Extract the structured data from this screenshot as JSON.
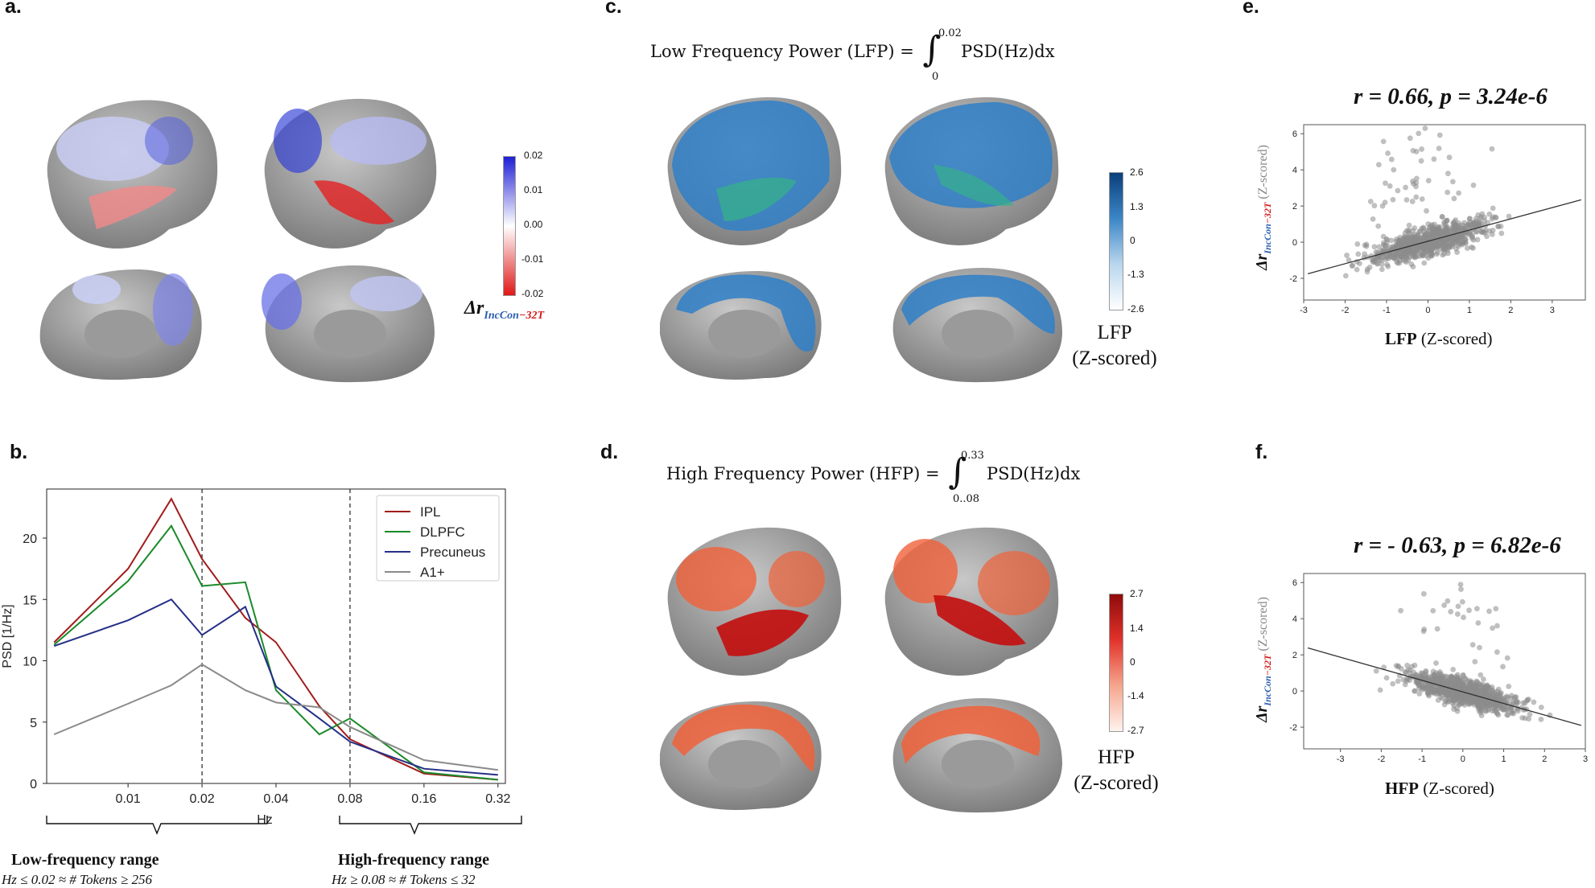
{
  "panels": {
    "a": {
      "letter": "a.",
      "colorbar_ticks": [
        "0.02",
        "0.01",
        "0.00",
        "-0.01",
        "-0.02"
      ],
      "label_delta": "Δr",
      "label_sub_a": "IncCon",
      "label_sub_b": "−32T",
      "colors": {
        "high": "#1f1fd6",
        "low": "#e01818"
      }
    },
    "b": {
      "letter": "b.",
      "xlabel": "Hz",
      "ylabel": "PSD [1/Hz]",
      "low_range": {
        "title": "Low-frequency range",
        "desc": "Hz ≤ 0.02  ≈ # Tokens ≥ 256"
      },
      "high_range": {
        "title": "High-frequency range",
        "desc": "Hz ≥ 0.08  ≈ # Tokens ≤ 32"
      }
    },
    "c": {
      "letter": "c.",
      "formula_left": "Low Frequency Power (LFP) =",
      "formula_right": "PSD(Hz)dx",
      "upper": "0.02",
      "lower": "0",
      "colorbar_ticks": [
        "2.6",
        "1.3",
        "0",
        "-1.3",
        "-2.6"
      ],
      "z_label_1": "LFP",
      "z_label_2": "(Z-scored)",
      "color": "#2f7fc8"
    },
    "d": {
      "letter": "d.",
      "formula_left": "High Frequency Power (HFP) =",
      "formula_right": "PSD(Hz)dx",
      "upper": "0.33",
      "lower": "0..08",
      "colorbar_ticks": [
        "2.7",
        "1.4",
        "0",
        "-1.4",
        "-2.7"
      ],
      "z_label_1": "HFP",
      "z_label_2": "(Z-scored)",
      "color": "#f0623a"
    },
    "e": {
      "letter": "e.",
      "stat": "r = 0.66, p = 3.24e-6",
      "xlabel_bold": "LFP",
      "xlabel_rest": " (Z-scored)",
      "ylabel_delta": "Δr",
      "ylabel_sub_a": "IncCon",
      "ylabel_sub_b": "−32T",
      "ylabel_rest": " (Z-scored)"
    },
    "f": {
      "letter": "f.",
      "stat": "r = - 0.63, p = 6.82e-6",
      "xlabel_bold": "HFP",
      "xlabel_rest": " (Z-scored)",
      "ylabel_delta": "Δr",
      "ylabel_sub_a": "IncCon",
      "ylabel_sub_b": "−32T",
      "ylabel_rest": " (Z-scored)"
    }
  },
  "chart_data": [
    {
      "type": "line",
      "x": [
        "0.005",
        "0.01",
        "0.015",
        "0.02",
        "0.03",
        "0.04",
        "0.06",
        "0.08",
        "0.16",
        "0.32"
      ],
      "x_ticks": [
        "0.01",
        "0.02",
        "0.04",
        "0.08",
        "0.16",
        "0.32"
      ],
      "xlabel": "Hz",
      "ylabel": "PSD [1/Hz]",
      "ylim": [
        0,
        24
      ],
      "y_ticks": [
        "0",
        "5",
        "10",
        "15",
        "20"
      ],
      "vlines": [
        "0.02",
        "0.08"
      ],
      "legend_position": "top-right",
      "series": [
        {
          "name": "IPL",
          "color": "#a11c1c",
          "values": [
            11.5,
            17.5,
            23.2,
            18.3,
            13.5,
            11.5,
            6.3,
            3.6,
            0.8,
            0.3
          ]
        },
        {
          "name": "DLPFC",
          "color": "#1b8a2a",
          "values": [
            11.3,
            16.5,
            21.0,
            16.1,
            16.4,
            7.6,
            4.0,
            5.3,
            0.9,
            0.3
          ]
        },
        {
          "name": "Precuneus",
          "color": "#252f86",
          "values": [
            11.2,
            13.3,
            15.0,
            12.1,
            14.4,
            7.9,
            5.3,
            3.4,
            1.2,
            0.7
          ]
        },
        {
          "name": "A1+",
          "color": "#8a8a8a",
          "values": [
            4.0,
            6.5,
            8.0,
            9.7,
            7.6,
            6.6,
            6.2,
            4.6,
            1.9,
            1.1
          ]
        }
      ]
    },
    {
      "type": "scatter",
      "xlabel": "LFP (Z-scored)",
      "ylabel": "Δr IncCon−32T (Z-scored)",
      "x_ticks": [
        "-3",
        "-2",
        "-1",
        "0",
        "1",
        "2",
        "3"
      ],
      "y_ticks": [
        "-2",
        "0",
        "2",
        "4",
        "6"
      ],
      "xlim": [
        -3,
        3.8
      ],
      "ylim": [
        -3.2,
        6.5
      ],
      "r": 0.66,
      "p": "3.24e-6",
      "trend": {
        "slope": 0.62,
        "intercept": 0.05
      },
      "point_color": "#8c8c8c"
    },
    {
      "type": "scatter",
      "xlabel": "HFP (Z-scored)",
      "ylabel": "Δr IncCon−32T (Z-scored)",
      "x_ticks": [
        "-3",
        "-2",
        "-1",
        "0",
        "1",
        "2",
        "3"
      ],
      "y_ticks": [
        "-2",
        "0",
        "2",
        "4",
        "6"
      ],
      "xlim": [
        -3.9,
        3.0
      ],
      "ylim": [
        -3.2,
        6.5
      ],
      "r": -0.63,
      "p": "6.82e-6",
      "trend": {
        "slope": -0.64,
        "intercept": -0.05
      },
      "point_color": "#8c8c8c"
    }
  ]
}
